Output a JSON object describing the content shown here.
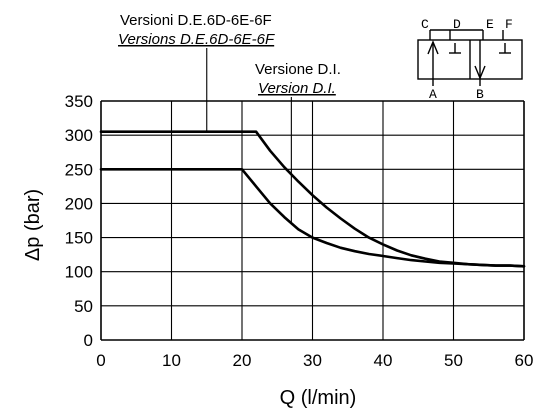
{
  "chart_data": {
    "type": "line",
    "xlabel": "Q (l/min)",
    "ylabel": "Δp (bar)",
    "xlim": [
      0,
      60
    ],
    "ylim": [
      0,
      350
    ],
    "x_ticks": [
      "0",
      "10",
      "20",
      "30",
      "40",
      "50",
      "60"
    ],
    "y_ticks": [
      "0",
      "50",
      "100",
      "150",
      "200",
      "250",
      "300",
      "350"
    ],
    "grid": true,
    "series": [
      {
        "x": [
          0,
          22,
          24,
          26,
          28,
          30,
          32,
          34,
          36,
          38,
          40,
          42,
          44,
          46,
          48,
          50,
          52,
          54,
          56,
          58,
          60
        ],
        "y": [
          305,
          305,
          277,
          253,
          232,
          212,
          194,
          178,
          163,
          150,
          140,
          131,
          124,
          119,
          115,
          113,
          111,
          110,
          109,
          109,
          108
        ]
      },
      {
        "x": [
          0,
          20,
          22,
          24,
          26,
          28,
          30,
          32,
          34,
          36,
          38,
          40,
          42,
          44,
          46,
          48,
          50,
          52,
          54,
          56,
          58,
          60
        ],
        "y": [
          250,
          250,
          225,
          200,
          180,
          162,
          150,
          142,
          135,
          130,
          126,
          123,
          120,
          117,
          115,
          113,
          112,
          111,
          110,
          109,
          109,
          108
        ]
      }
    ],
    "annotations": [
      {
        "line1": "Versioni D.E.6D-6E-6F",
        "line2": "Versions D.E.6D-6E-6F",
        "x": 15,
        "y": 305
      },
      {
        "line1": "Versione D.I.",
        "line2": "Version D.I.",
        "x": 27,
        "y": 170
      }
    ],
    "symbol_labels": [
      "C",
      "D",
      "E",
      "F",
      "A",
      "B"
    ]
  }
}
